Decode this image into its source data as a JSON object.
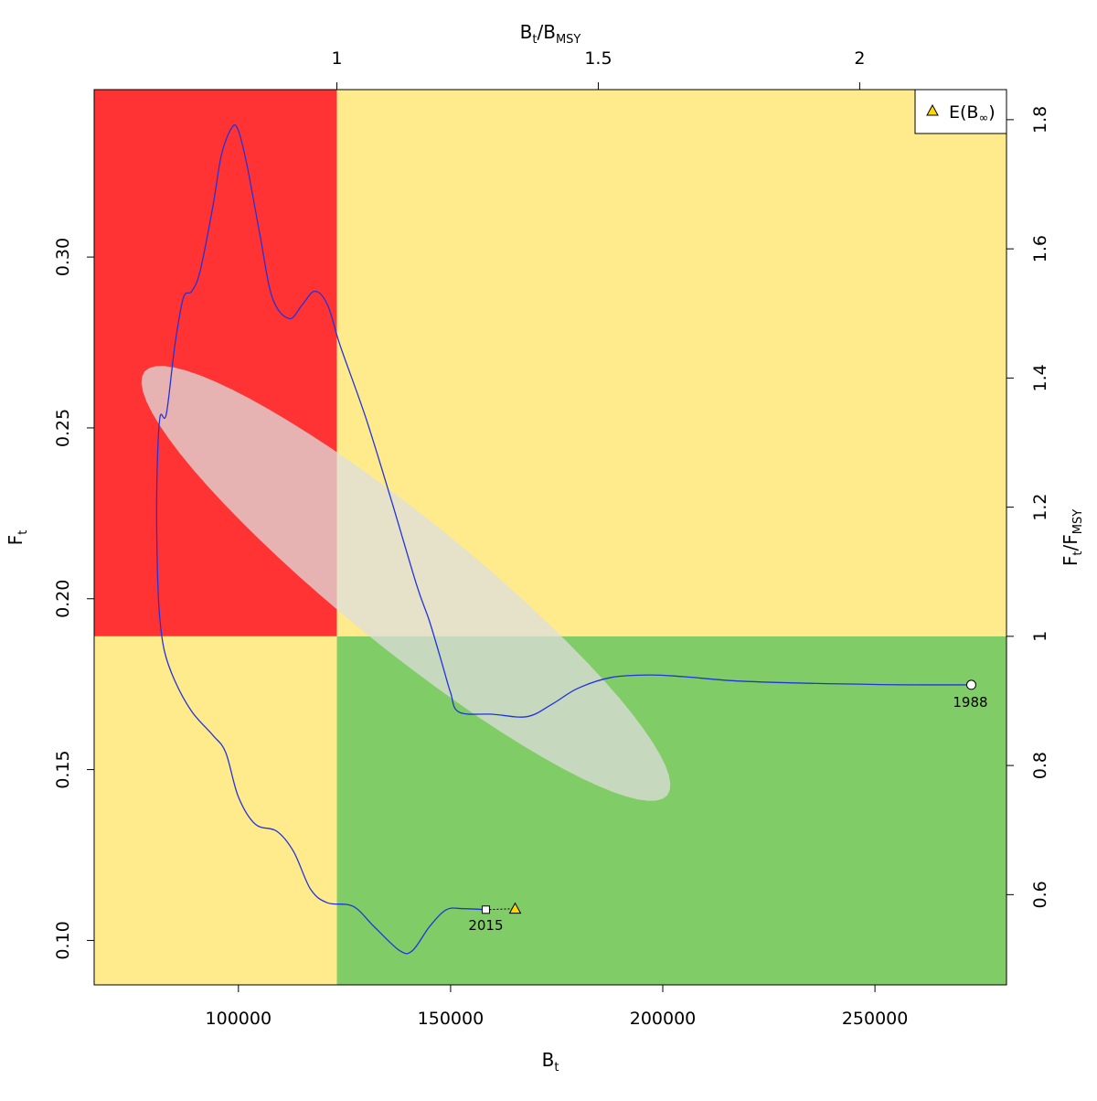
{
  "chart_data": {
    "type": "line",
    "title": "",
    "xlabel": {
      "main": "B",
      "sub": "t"
    },
    "ylabel": {
      "main": "F",
      "sub": "t"
    },
    "top_xlabel": {
      "main": "B",
      "sub": "t",
      "sep": "/",
      "main2": "B",
      "sub2": "MSY"
    },
    "right_ylabel": {
      "main": "F",
      "sub": "t",
      "sep": "/",
      "main2": "F",
      "sub2": "MSY"
    },
    "xlim": [
      66000,
      281000
    ],
    "ylim": [
      0.087,
      0.349
    ],
    "bmsy": 123200,
    "fmsy": 0.189,
    "x_ticks": [
      100000,
      150000,
      200000,
      250000
    ],
    "x_tick_labels": [
      "100000",
      "150000",
      "200000",
      "250000"
    ],
    "y_ticks": [
      0.1,
      0.15,
      0.2,
      0.25,
      0.3
    ],
    "y_tick_labels": [
      "0.10",
      "0.15",
      "0.20",
      "0.25",
      "0.30"
    ],
    "top_ticks": [
      1,
      1.5,
      2
    ],
    "top_tick_labels": [
      "1",
      "1.5",
      "2"
    ],
    "right_ticks": [
      0.6,
      0.8,
      1,
      1.2,
      1.4,
      1.6,
      1.8
    ],
    "right_tick_labels": [
      "0.6",
      "0.8",
      "1",
      "1.2",
      "1.4",
      "1.6",
      "1.8"
    ],
    "zones": {
      "overfished_overfishing": "#ff3333",
      "caution": "#ffeb8c",
      "healthy": "#80cc66"
    },
    "trajectory_color": "#2233dd",
    "trajectory": [
      [
        272700,
        0.1748
      ],
      [
        250000,
        0.1749
      ],
      [
        220000,
        0.1758
      ],
      [
        205000,
        0.1772
      ],
      [
        197000,
        0.1777
      ],
      [
        188000,
        0.177
      ],
      [
        180000,
        0.1738
      ],
      [
        174000,
        0.1692
      ],
      [
        168000,
        0.1655
      ],
      [
        160000,
        0.1662
      ],
      [
        152000,
        0.1668
      ],
      [
        150000,
        0.1725
      ],
      [
        148000,
        0.181
      ],
      [
        145000,
        0.1935
      ],
      [
        142000,
        0.204
      ],
      [
        136000,
        0.229
      ],
      [
        130000,
        0.253
      ],
      [
        124000,
        0.274
      ],
      [
        121000,
        0.286
      ],
      [
        118000,
        0.29
      ],
      [
        115000,
        0.286
      ],
      [
        112000,
        0.282
      ],
      [
        108000,
        0.288
      ],
      [
        105000,
        0.307
      ],
      [
        102000,
        0.327
      ],
      [
        100000,
        0.337
      ],
      [
        98500,
        0.338
      ],
      [
        96000,
        0.33
      ],
      [
        94000,
        0.315
      ],
      [
        91000,
        0.296
      ],
      [
        89000,
        0.29
      ],
      [
        87000,
        0.288
      ],
      [
        85000,
        0.274
      ],
      [
        83000,
        0.254
      ],
      [
        81500,
        0.253
      ],
      [
        80800,
        0.235
      ],
      [
        80800,
        0.215
      ],
      [
        81300,
        0.197
      ],
      [
        82500,
        0.185
      ],
      [
        85000,
        0.176
      ],
      [
        89000,
        0.167
      ],
      [
        94000,
        0.16
      ],
      [
        97000,
        0.155
      ],
      [
        100000,
        0.142
      ],
      [
        104000,
        0.134
      ],
      [
        109000,
        0.132
      ],
      [
        113000,
        0.126
      ],
      [
        117000,
        0.115
      ],
      [
        121000,
        0.111
      ],
      [
        127000,
        0.11
      ],
      [
        132000,
        0.104
      ],
      [
        138000,
        0.097
      ],
      [
        141000,
        0.097
      ],
      [
        145000,
        0.104
      ],
      [
        149000,
        0.109
      ],
      [
        153000,
        0.1093
      ],
      [
        158300,
        0.109
      ]
    ],
    "start": {
      "year": "1988",
      "x": 272700,
      "y": 0.1748
    },
    "end": {
      "year": "2015",
      "x": 158300,
      "y": 0.109
    },
    "forecast": {
      "label": "E(B∞)",
      "x": 165200,
      "y": 0.1093,
      "color": "#ffd700"
    },
    "ellipse": {
      "color": "#dddddd",
      "opacity": 0.75
    },
    "legend": {
      "position": "top-right",
      "entries": [
        {
          "label": "E(B",
          "sub": "∞",
          "tail": ")"
        }
      ]
    }
  }
}
